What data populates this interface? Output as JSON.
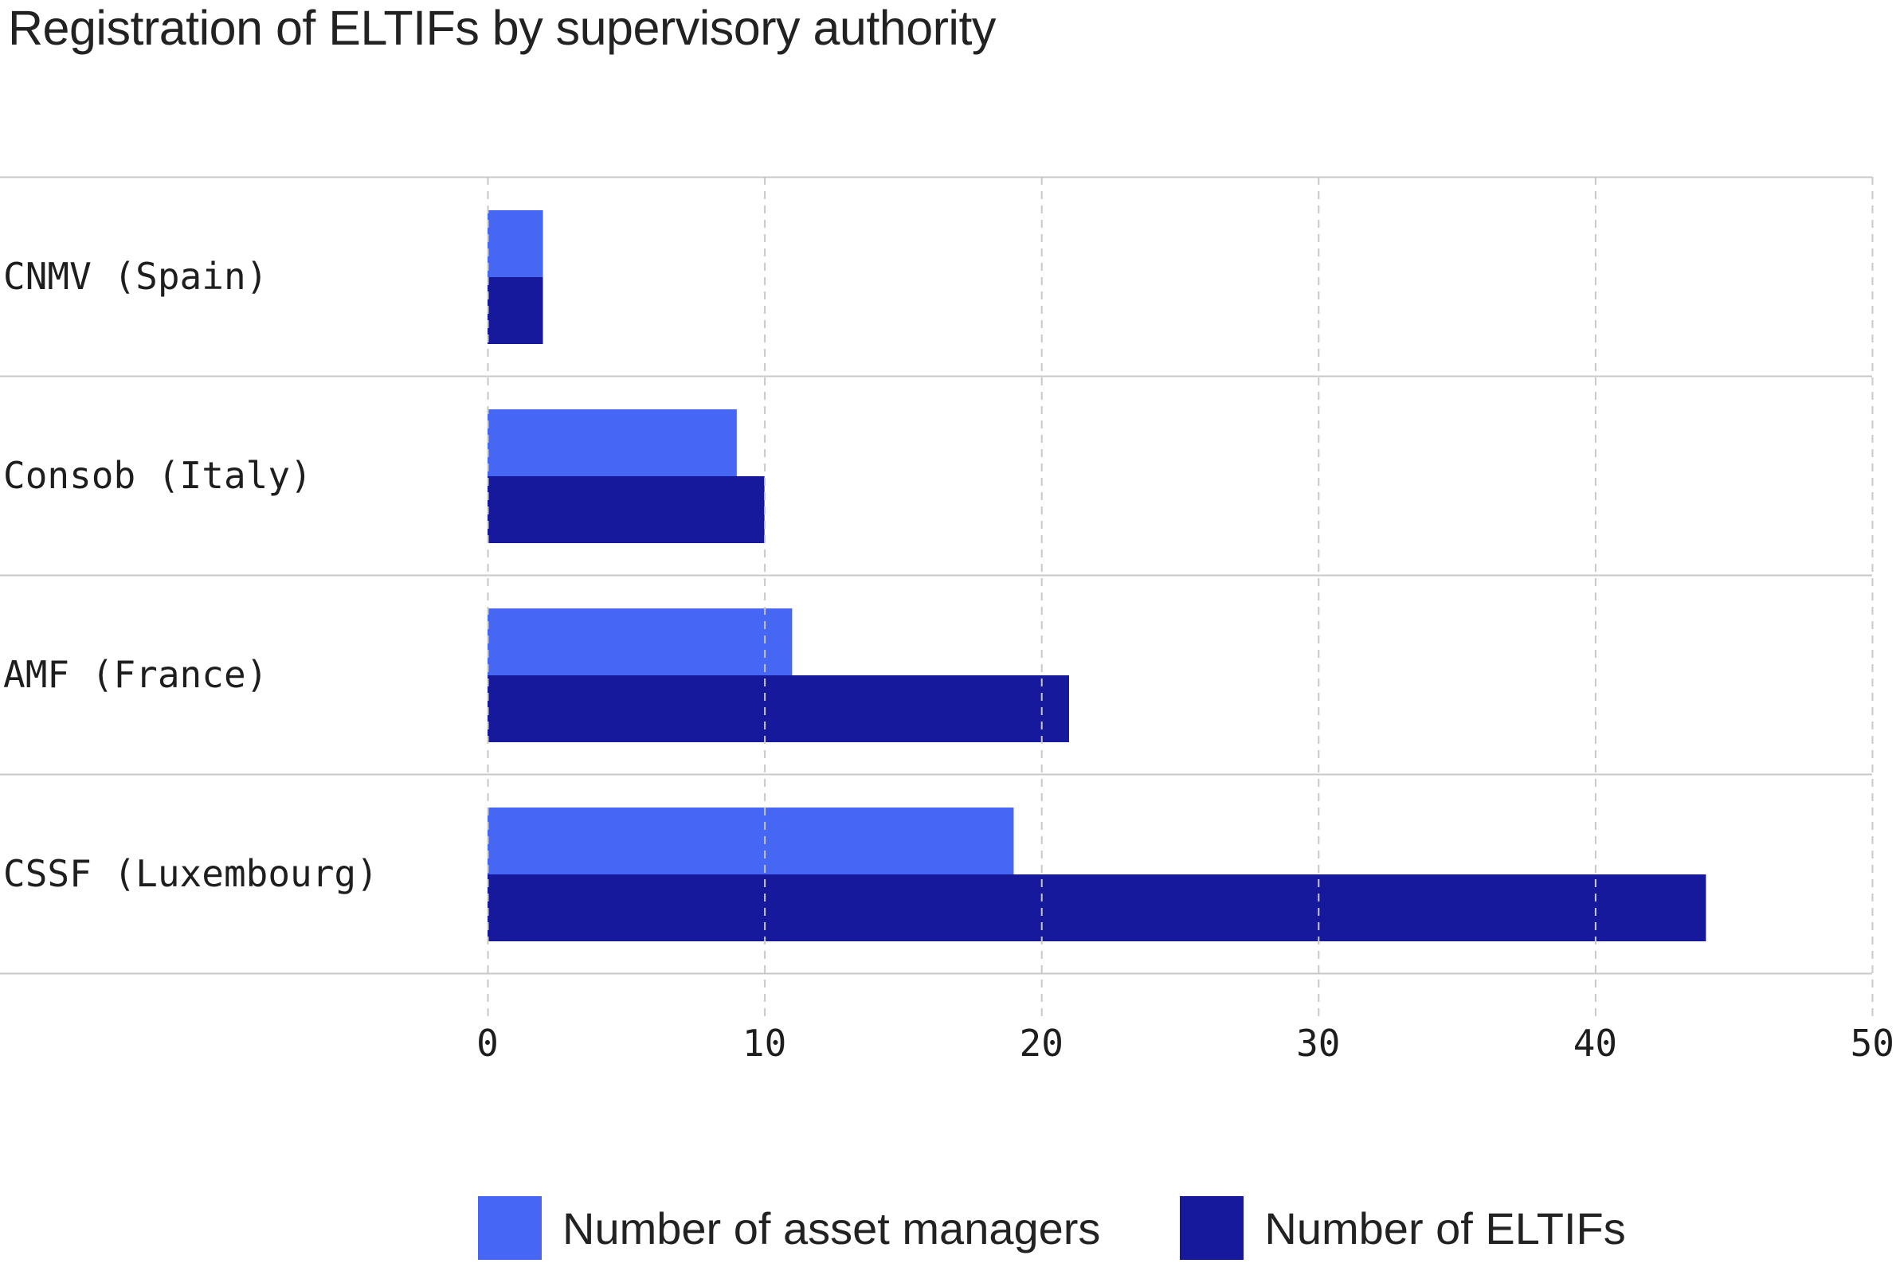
{
  "title": "Registration of ELTIFs by supervisory authority",
  "colors": {
    "series1": "#4567f3",
    "series2": "#16199b",
    "grid": "#c8c8c8",
    "text": "#1e1e1e"
  },
  "chart_data": {
    "type": "bar",
    "orientation": "horizontal",
    "categories": [
      "CNMV (Spain)",
      "Consob (Italy)",
      "AMF (France)",
      "CSSF (Luxembourg)"
    ],
    "series": [
      {
        "name": "Number of asset managers",
        "values": [
          2,
          9,
          11,
          19
        ]
      },
      {
        "name": "Number of ELTIFs",
        "values": [
          2,
          10,
          21,
          44
        ]
      }
    ],
    "xticks": [
      "0",
      "10",
      "20",
      "30",
      "40",
      "50"
    ],
    "xlim": [
      0,
      50
    ],
    "grid": "vertical dashed",
    "legend_position": "bottom"
  }
}
